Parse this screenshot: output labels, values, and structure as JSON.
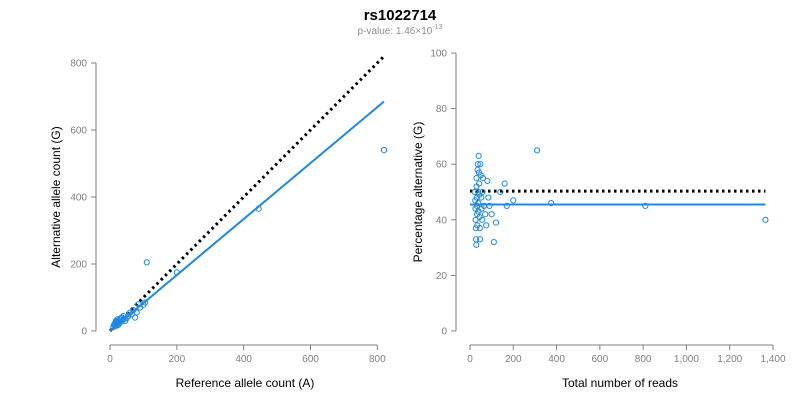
{
  "title": "rs1022714",
  "subtitle": {
    "prefix": "p-value: 1.46×10",
    "exponent": "-13"
  },
  "colors": {
    "points": "#1e88e5",
    "fit_line": "#1e88e5",
    "reference_line": "#000000",
    "axis": "#7f7f7f"
  },
  "chart_data": [
    {
      "type": "scatter",
      "xlabel": "Reference allele count (A)",
      "ylabel": "Alternative allele count (G)",
      "xlim": [
        0,
        820
      ],
      "ylim": [
        0,
        800
      ],
      "xticks": [
        0,
        200,
        400,
        600,
        800
      ],
      "yticks": [
        0,
        200,
        400,
        600,
        800
      ],
      "xtick_labels": [
        "0",
        "200",
        "400",
        "600",
        "800"
      ],
      "ytick_labels": [
        "0",
        "200",
        "400",
        "600",
        "800"
      ],
      "grid": false,
      "points": [
        [
          10,
          12
        ],
        [
          12,
          18
        ],
        [
          14,
          20
        ],
        [
          15,
          15
        ],
        [
          16,
          25
        ],
        [
          18,
          22
        ],
        [
          18,
          30
        ],
        [
          20,
          16
        ],
        [
          20,
          28
        ],
        [
          22,
          20
        ],
        [
          22,
          35
        ],
        [
          24,
          26
        ],
        [
          25,
          18
        ],
        [
          26,
          32
        ],
        [
          28,
          24
        ],
        [
          30,
          30
        ],
        [
          32,
          38
        ],
        [
          34,
          28
        ],
        [
          36,
          40
        ],
        [
          38,
          33
        ],
        [
          40,
          45
        ],
        [
          42,
          36
        ],
        [
          45,
          30
        ],
        [
          50,
          38
        ],
        [
          55,
          45
        ],
        [
          60,
          55
        ],
        [
          65,
          50
        ],
        [
          70,
          62
        ],
        [
          75,
          40
        ],
        [
          80,
          55
        ],
        [
          85,
          80
        ],
        [
          90,
          70
        ],
        [
          100,
          78
        ],
        [
          105,
          85
        ],
        [
          110,
          205
        ],
        [
          200,
          175
        ],
        [
          445,
          365
        ],
        [
          820,
          540
        ]
      ],
      "reference_line": {
        "style": "dotted",
        "points": [
          [
            0,
            0
          ],
          [
            820,
            820
          ]
        ]
      },
      "fit_line": {
        "style": "solid",
        "points": [
          [
            0,
            0
          ],
          [
            820,
            685
          ]
        ]
      }
    },
    {
      "type": "scatter",
      "xlabel": "Total number of reads",
      "ylabel": "Percentage alternative (G)",
      "xlim": [
        0,
        1400
      ],
      "ylim": [
        0,
        100
      ],
      "xticks": [
        0,
        200,
        400,
        600,
        800,
        1000,
        1200,
        1400
      ],
      "yticks": [
        0,
        20,
        40,
        60,
        80,
        100
      ],
      "xtick_labels": [
        "0",
        "200",
        "400",
        "600",
        "800",
        "1,000",
        "1,200",
        "1,400"
      ],
      "ytick_labels": [
        "0",
        "20",
        "40",
        "60",
        "80",
        "100"
      ],
      "grid": false,
      "points": [
        [
          22,
          50
        ],
        [
          24,
          47
        ],
        [
          25,
          44
        ],
        [
          26,
          40
        ],
        [
          27,
          37
        ],
        [
          28,
          33
        ],
        [
          29,
          31
        ],
        [
          30,
          55
        ],
        [
          30,
          52
        ],
        [
          31,
          48
        ],
        [
          32,
          45
        ],
        [
          33,
          42
        ],
        [
          34,
          38
        ],
        [
          35,
          58
        ],
        [
          36,
          60
        ],
        [
          37,
          50
        ],
        [
          38,
          46
        ],
        [
          39,
          43
        ],
        [
          40,
          63
        ],
        [
          41,
          57
        ],
        [
          42,
          53
        ],
        [
          43,
          49
        ],
        [
          44,
          41
        ],
        [
          45,
          37
        ],
        [
          46,
          33
        ],
        [
          48,
          60
        ],
        [
          50,
          56
        ],
        [
          52,
          48
        ],
        [
          54,
          44
        ],
        [
          56,
          40
        ],
        [
          58,
          50
        ],
        [
          60,
          55
        ],
        [
          65,
          45
        ],
        [
          70,
          42
        ],
        [
          75,
          38
        ],
        [
          80,
          54
        ],
        [
          85,
          48
        ],
        [
          90,
          45
        ],
        [
          100,
          42
        ],
        [
          110,
          32
        ],
        [
          120,
          39
        ],
        [
          140,
          50
        ],
        [
          160,
          53
        ],
        [
          170,
          45
        ],
        [
          200,
          47
        ],
        [
          310,
          65
        ],
        [
          375,
          46
        ],
        [
          810,
          45
        ],
        [
          1365,
          40
        ]
      ],
      "reference_line": {
        "style": "dotted",
        "points": [
          [
            0,
            50.3
          ],
          [
            1365,
            50.3
          ]
        ]
      },
      "fit_line": {
        "style": "solid",
        "points": [
          [
            0,
            45.5
          ],
          [
            1365,
            45.5
          ]
        ]
      }
    }
  ]
}
